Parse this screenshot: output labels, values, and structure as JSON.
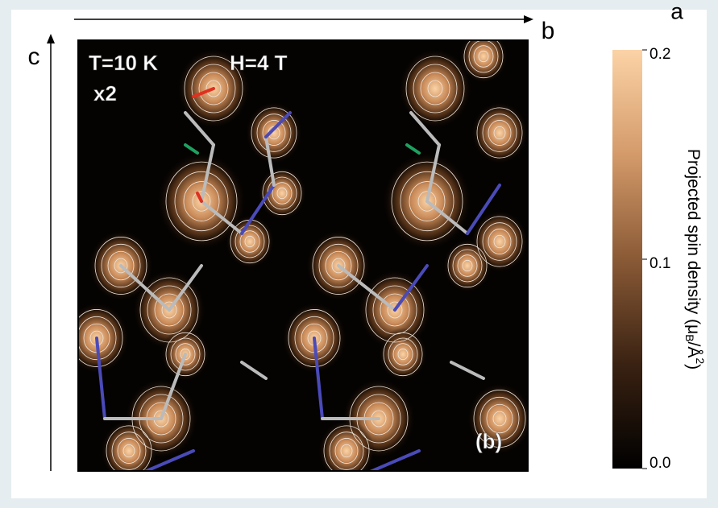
{
  "figure": {
    "panel_label": "a",
    "axes": {
      "horizontal": "b",
      "vertical": "c"
    },
    "annotations": {
      "temperature": "T=10 K",
      "field": "H=4 T",
      "scale": "x2",
      "subpanel": "(b)"
    },
    "colorbar": {
      "label": {
        "main": "Projected spin density (μ",
        "sub": "B",
        "mid": "/Å",
        "sup": "2",
        "end": ")"
      },
      "lim": [
        0,
        0.2
      ],
      "ticks": [
        {
          "value": 0,
          "label": "0.0"
        },
        0.1,
        0.2
      ],
      "colors": [
        "#000000",
        "#3a2212",
        "#8a5a36",
        "#d49a6a",
        "#fbd3a6"
      ]
    }
  }
}
